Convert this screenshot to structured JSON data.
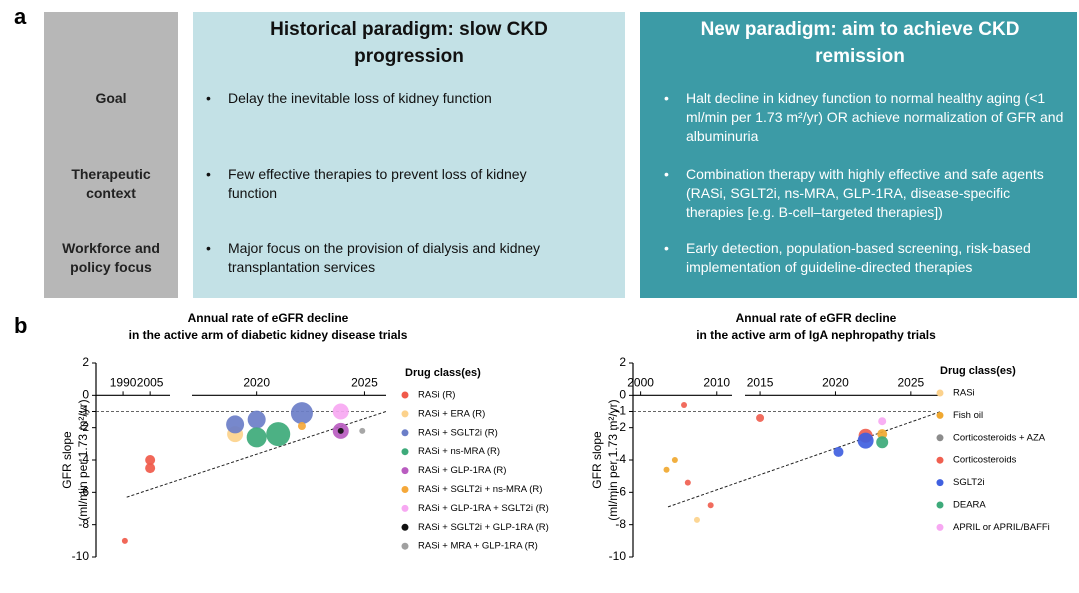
{
  "panel_a": {
    "label": "a",
    "columns": [
      "Historical paradigm: slow CKD progression",
      "New paradigm: aim to achieve CKD remission"
    ],
    "rows": [
      {
        "label": "Goal",
        "cells": [
          "Delay the inevitable loss of kidney function",
          "Halt decline in kidney function to normal healthy aging (<1 ml/min per 1.73 m²/yr) OR achieve normalization  of GFR and albuminuria"
        ]
      },
      {
        "label": "Therapeutic context",
        "cells": [
          "Few effective therapies to prevent loss of kidney function",
          "Combination therapy with highly effective and safe agents (RASi, SGLT2i, ns-MRA, GLP-1RA, disease-specific therapies [e.g. B-cell–targeted therapies])"
        ]
      },
      {
        "label": "Workforce and policy focus",
        "cells": [
          "Major focus on the provision of dialysis and kidney transplantation services",
          "Early detection, population-based screening, risk-based implementation of guideline-directed therapies"
        ]
      }
    ]
  },
  "panel_b": {
    "label": "b"
  },
  "chart_data": [
    {
      "type": "scatter",
      "title": [
        "Annual rate of eGFR decline",
        "in the active arm of diabetic kidney disease trials"
      ],
      "ylabel": [
        "GFR slope",
        "(ml/min per 1.73 m²/yr)"
      ],
      "xlim": [
        [
          1975,
          2016
        ],
        [
          2017,
          2026
        ]
      ],
      "xticks": [
        1990,
        2005,
        2020,
        2025
      ],
      "ylim": [
        -10,
        2
      ],
      "yticks": [
        2,
        0,
        -1,
        -2,
        -4,
        -6,
        -8,
        -10
      ],
      "hline": -1,
      "trendline": {
        "x": [
          1992,
          2026
        ],
        "y": [
          -6.3,
          -1
        ]
      },
      "legend_title": "Drug class(es)",
      "series": [
        {
          "name": "RASi (R)",
          "color": "#f05a4a",
          "x": [
            1991,
            2005,
            2005
          ],
          "y": [
            -9,
            -4,
            -4.5
          ],
          "sizes": [
            3,
            5,
            5
          ]
        },
        {
          "name": "RASi + ERA (R)",
          "color": "#fcd28c",
          "x": [
            2019
          ],
          "y": [
            -2.4
          ],
          "sizes": [
            8
          ]
        },
        {
          "name": "RASi + SGLT2i (R)",
          "color": "#6b7ec8",
          "x": [
            2019,
            2020,
            2022.1
          ],
          "y": [
            -1.8,
            -1.5,
            -1.1
          ],
          "sizes": [
            9,
            9,
            11
          ]
        },
        {
          "name": "RASi + ns-MRA (R)",
          "color": "#3daa7a",
          "x": [
            2020,
            2021
          ],
          "y": [
            -2.6,
            -2.4
          ],
          "sizes": [
            10,
            12
          ]
        },
        {
          "name": "RASi + GLP-1RA (R)",
          "color": "#b95cc0",
          "x": [
            2023.9
          ],
          "y": [
            -2.2
          ],
          "sizes": [
            8
          ]
        },
        {
          "name": "RASi + SGLT2i + ns-MRA (R)",
          "color": "#f5a83a",
          "x": [
            2022.1
          ],
          "y": [
            -1.9
          ],
          "sizes": [
            4
          ]
        },
        {
          "name": "RASi + GLP-1RA + SGLT2i (R)",
          "color": "#f7a8f2",
          "x": [
            2023.9
          ],
          "y": [
            -1
          ],
          "sizes": [
            8
          ]
        },
        {
          "name": "RASi + SGLT2i + GLP-1RA (R)",
          "color": "#111111",
          "x": [
            2023.9
          ],
          "y": [
            -2.2
          ],
          "sizes": [
            3
          ]
        },
        {
          "name": "RASi + MRA + GLP-1RA (R)",
          "color": "#a0a0a0",
          "x": [
            2024.9
          ],
          "y": [
            -2.2
          ],
          "sizes": [
            3
          ]
        }
      ]
    },
    {
      "type": "scatter",
      "title": [
        "Annual rate of eGFR decline",
        "in the active arm of IgA nephropathy trials"
      ],
      "ylabel": [
        "GFR slope",
        "(ml/min per 1.73 m²/yr)"
      ],
      "xlim": [
        [
          1999,
          2012
        ],
        [
          2014,
          2027
        ]
      ],
      "xticks": [
        2000,
        2010,
        2015,
        2020,
        2025
      ],
      "ylim": [
        -10,
        2
      ],
      "yticks": [
        2,
        0,
        -1,
        -2,
        -4,
        -6,
        -8,
        -10
      ],
      "hline": -1,
      "trendline": {
        "x": [
          2003.6,
          2027
        ],
        "y": [
          -6.9,
          -1
        ]
      },
      "legend_title": "Drug class(es)",
      "series": [
        {
          "name": "RASi",
          "color": "#fcd28c",
          "x": [
            2007.4
          ],
          "y": [
            -7.7
          ],
          "sizes": [
            3
          ]
        },
        {
          "name": "Fish oil",
          "color": "#f0a830",
          "x": [
            2003.4,
            2004.5,
            2023.1
          ],
          "y": [
            -4.6,
            -4,
            -2.4
          ],
          "sizes": [
            3,
            3,
            5
          ]
        },
        {
          "name": "Corticosteroids + AZA",
          "color": "#8c8c8c",
          "x": [],
          "y": [],
          "sizes": []
        },
        {
          "name": "Corticosteroids",
          "color": "#f06050",
          "x": [
            2005.7,
            2006.2,
            2009.2,
            2015,
            2022
          ],
          "y": [
            -0.6,
            -5.4,
            -6.8,
            -1.4,
            -2.5
          ],
          "sizes": [
            3,
            3,
            3,
            4,
            7
          ]
        },
        {
          "name": "SGLT2i",
          "color": "#4060e0",
          "x": [
            2020.2,
            2022
          ],
          "y": [
            -3.5,
            -2.8
          ],
          "sizes": [
            5,
            8
          ]
        },
        {
          "name": "DEARA",
          "color": "#3daa7a",
          "x": [
            2023.1
          ],
          "y": [
            -2.9
          ],
          "sizes": [
            6
          ]
        },
        {
          "name": "APRIL or APRIL/BAFFi",
          "color": "#f7a8f2",
          "x": [
            2023.1
          ],
          "y": [
            -1.6
          ],
          "sizes": [
            4
          ]
        }
      ]
    }
  ]
}
